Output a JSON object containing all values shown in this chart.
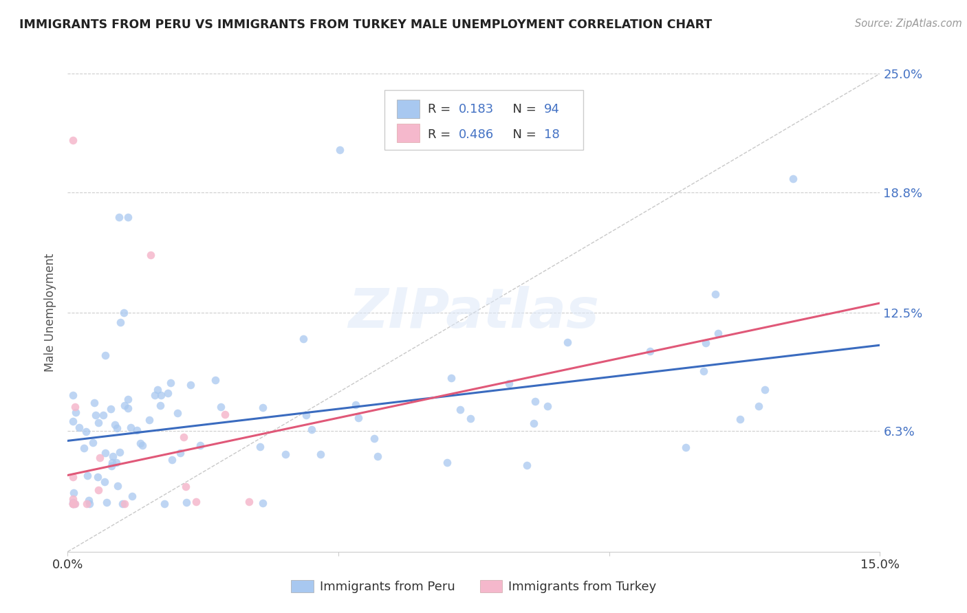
{
  "title": "IMMIGRANTS FROM PERU VS IMMIGRANTS FROM TURKEY MALE UNEMPLOYMENT CORRELATION CHART",
  "source": "Source: ZipAtlas.com",
  "ylabel": "Male Unemployment",
  "xlim": [
    0.0,
    0.15
  ],
  "ylim": [
    0.0,
    0.25
  ],
  "yticks": [
    0.063,
    0.125,
    0.188,
    0.25
  ],
  "ytick_labels": [
    "6.3%",
    "12.5%",
    "18.8%",
    "25.0%"
  ],
  "peru_color": "#a8c8f0",
  "turkey_color": "#f5b8cc",
  "peru_line_color": "#3a6bbf",
  "turkey_line_color": "#e05878",
  "peru_R": 0.183,
  "peru_N": 94,
  "turkey_R": 0.486,
  "turkey_N": 18,
  "legend_peru": "Immigrants from Peru",
  "legend_turkey": "Immigrants from Turkey",
  "watermark": "ZIPatlas",
  "background_color": "#ffffff",
  "title_color": "#222222",
  "axis_label_color": "#555555",
  "right_label_color": "#4472c4",
  "peru_line_start_y": 0.058,
  "peru_line_end_y": 0.108,
  "turkey_line_start_y": 0.04,
  "turkey_line_end_y": 0.13
}
